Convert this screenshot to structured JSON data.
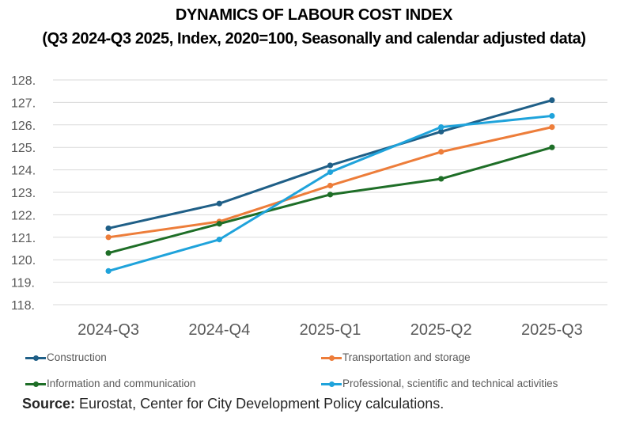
{
  "chart_data": {
    "type": "line",
    "title": "DYNAMICS OF LABOUR COST INDEX",
    "subtitle": "(Q3 2024-Q3 2025, Index, 2020=100, Seasonally and calendar adjusted data)",
    "xlabel": "",
    "ylabel": "",
    "categories": [
      "2024-Q3",
      "2024-Q4",
      "2025-Q1",
      "2025-Q2",
      "2025-Q3"
    ],
    "ylim": [
      118,
      128
    ],
    "yticks": [
      "118.",
      "119.",
      "120.",
      "121.",
      "122.",
      "123.",
      "124.",
      "125.",
      "126.",
      "127.",
      "128."
    ],
    "grid": true,
    "legend_position": "bottom",
    "series": [
      {
        "name": "Construction",
        "color": "#1f5f87",
        "values": [
          121.4,
          122.5,
          124.2,
          125.7,
          127.1
        ]
      },
      {
        "name": "Transportation and storage",
        "color": "#ed7d3a",
        "values": [
          121.0,
          121.7,
          123.3,
          124.8,
          125.9
        ]
      },
      {
        "name": "Information and communication",
        "color": "#1e6e27",
        "values": [
          120.3,
          121.6,
          122.9,
          123.6,
          125.0
        ]
      },
      {
        "name": "Professional, scientific and technical activities",
        "color": "#1fa3db",
        "values": [
          119.5,
          120.9,
          123.9,
          125.9,
          126.4
        ]
      }
    ]
  },
  "source": {
    "label": "Source:",
    "text": " Eurostat, Center for City Development  Policy calculations."
  }
}
